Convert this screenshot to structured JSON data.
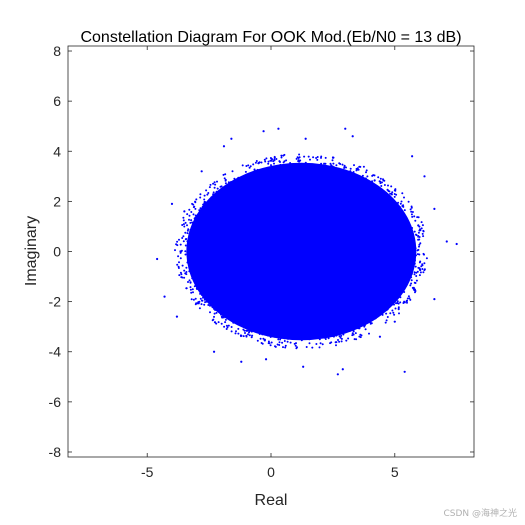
{
  "chart_data": {
    "type": "scatter",
    "title": "Constellation Diagram For OOK Mod.(Eb/N0 = 13 dB)",
    "xlabel": "Real",
    "ylabel": "Imaginary",
    "xlim": [
      -8.2,
      8.2
    ],
    "ylim": [
      -8.2,
      8.2
    ],
    "xticks": [
      -5,
      0,
      5
    ],
    "yticks": [
      -8,
      -6,
      -4,
      -2,
      0,
      2,
      4,
      6,
      8
    ],
    "grid": false,
    "marker_color": "#0000ff",
    "series": [
      {
        "symbols": [
          {
            "x": 0,
            "y": 0
          },
          {
            "x": 2.45,
            "y": 0
          }
        ],
        "noise_std": 1.2,
        "points": [
          {
            "x": -4.6,
            "y": -0.3
          },
          {
            "x": -4.3,
            "y": -1.8
          },
          {
            "x": -4.0,
            "y": 1.9
          },
          {
            "x": -3.5,
            "y": 1.6
          },
          {
            "x": -2.3,
            "y": -4.0
          },
          {
            "x": -1.9,
            "y": 4.2
          },
          {
            "x": -1.6,
            "y": 4.5
          },
          {
            "x": -1.2,
            "y": -4.4
          },
          {
            "x": -0.2,
            "y": -4.3
          },
          {
            "x": -0.3,
            "y": 4.8
          },
          {
            "x": 0.3,
            "y": 4.9
          },
          {
            "x": 1.3,
            "y": -4.6
          },
          {
            "x": 1.4,
            "y": 4.5
          },
          {
            "x": 2.7,
            "y": -4.9
          },
          {
            "x": 2.9,
            "y": -4.7
          },
          {
            "x": 3.0,
            "y": 4.9
          },
          {
            "x": 3.3,
            "y": 4.6
          },
          {
            "x": 4.4,
            "y": -3.4
          },
          {
            "x": 5.0,
            "y": -2.8
          },
          {
            "x": 5.4,
            "y": -4.8
          },
          {
            "x": 6.2,
            "y": 3.0
          },
          {
            "x": 6.6,
            "y": 1.7
          },
          {
            "x": 7.1,
            "y": 0.4
          },
          {
            "x": 7.5,
            "y": 0.3
          },
          {
            "x": 6.6,
            "y": -1.9
          },
          {
            "x": -3.8,
            "y": -2.6
          },
          {
            "x": 5.7,
            "y": 3.8
          },
          {
            "x": -2.8,
            "y": 3.2
          }
        ]
      }
    ]
  },
  "watermark": "CSDN @海神之光"
}
